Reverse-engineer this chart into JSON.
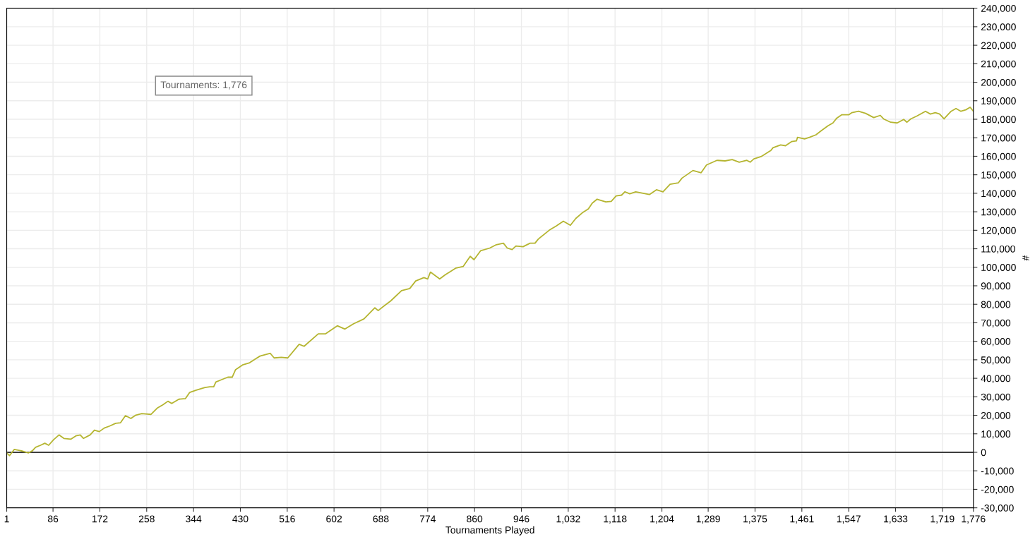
{
  "chart_data": {
    "type": "line",
    "xlabel": "Tournaments Played",
    "ylabel": "#",
    "annotations": [
      "Tournaments: 1,776"
    ],
    "xlim": [
      1,
      1776
    ],
    "ylim": [
      -30000,
      240000
    ],
    "xticks": [
      1,
      86,
      172,
      258,
      344,
      430,
      516,
      602,
      688,
      774,
      860,
      946,
      {
        "value": 1032,
        "label": "1,032"
      },
      {
        "value": 1118,
        "label": "1,118"
      },
      {
        "value": 1204,
        "label": "1,204"
      },
      {
        "value": 1289,
        "label": "1,289"
      },
      {
        "value": 1375,
        "label": "1,375"
      },
      {
        "value": 1461,
        "label": "1,461"
      },
      {
        "value": 1547,
        "label": "1,547"
      },
      {
        "value": 1633,
        "label": "1,633"
      },
      {
        "value": 1719,
        "label": "1,719"
      },
      {
        "value": 1776,
        "label": "1,776"
      }
    ],
    "yticks": [
      {
        "value": -30000,
        "label": "-30,000"
      },
      {
        "value": -20000,
        "label": "-20,000"
      },
      {
        "value": -10000,
        "label": "-10,000"
      },
      0,
      {
        "value": 10000,
        "label": "10,000"
      },
      {
        "value": 20000,
        "label": "20,000"
      },
      {
        "value": 30000,
        "label": "30,000"
      },
      {
        "value": 40000,
        "label": "40,000"
      },
      {
        "value": 50000,
        "label": "50,000"
      },
      {
        "value": 60000,
        "label": "60,000"
      },
      {
        "value": 70000,
        "label": "70,000"
      },
      {
        "value": 80000,
        "label": "80,000"
      },
      {
        "value": 90000,
        "label": "90,000"
      },
      {
        "value": 100000,
        "label": "100,000"
      },
      {
        "value": 110000,
        "label": "110,000"
      },
      {
        "value": 120000,
        "label": "120,000"
      },
      {
        "value": 130000,
        "label": "130,000"
      },
      {
        "value": 140000,
        "label": "140,000"
      },
      {
        "value": 150000,
        "label": "150,000"
      },
      {
        "value": 160000,
        "label": "160,000"
      },
      {
        "value": 170000,
        "label": "170,000"
      },
      {
        "value": 180000,
        "label": "180,000"
      },
      {
        "value": 190000,
        "label": "190,000"
      },
      {
        "value": 200000,
        "label": "200,000"
      },
      {
        "value": 210000,
        "label": "210,000"
      },
      {
        "value": 220000,
        "label": "220,000"
      },
      {
        "value": 230000,
        "label": "230,000"
      },
      {
        "value": 240000,
        "label": "240,000"
      }
    ],
    "grid": true,
    "marker": "none",
    "line_style": "solid",
    "ref_lines": [
      {
        "axis": "y",
        "value": 0,
        "color": "#000000"
      }
    ],
    "series": [
      {
        "color": "#b5b531",
        "x": [
          1,
          6,
          15,
          28,
          41,
          48,
          54,
          63,
          71,
          78,
          87,
          97,
          106,
          119,
          128,
          136,
          142,
          154,
          162,
          171,
          180,
          190,
          201,
          210,
          219,
          229,
          238,
          249,
          266,
          277,
          288,
          297,
          304,
          317,
          329,
          337,
          348,
          365,
          374,
          381,
          385,
          394,
          407,
          415,
          421,
          434,
          447,
          454,
          466,
          485,
          492,
          505,
          517,
          538,
          547,
          573,
          586,
          608,
          622,
          638,
          657,
          677,
          683,
          696,
          706,
          726,
          741,
          752,
          767,
          774,
          779,
          796,
          806,
          826,
          839,
          852,
          859,
          871,
          888,
          900,
          913,
          920,
          929,
          936,
          949,
          962,
          971,
          977,
          997,
          1010,
          1023,
          1036,
          1046,
          1059,
          1069,
          1076,
          1085,
          1101,
          1111,
          1120,
          1130,
          1136,
          1145,
          1156,
          1181,
          1194,
          1206,
          1219,
          1234,
          1241,
          1261,
          1276,
          1286,
          1305,
          1320,
          1333,
          1346,
          1360,
          1366,
          1373,
          1386,
          1404,
          1408,
          1422,
          1431,
          1442,
          1451,
          1453,
          1466,
          1475,
          1487,
          1497,
          1509,
          1518,
          1525,
          1534,
          1547,
          1553,
          1565,
          1578,
          1593,
          1605,
          1611,
          1624,
          1636,
          1648,
          1654,
          1661,
          1672,
          1688,
          1697,
          1706,
          1714,
          1722,
          1735,
          1744,
          1753,
          1762,
          1770,
          1776
        ],
        "values": [
          -300,
          -1800,
          1600,
          800,
          -300,
          800,
          2700,
          3800,
          4900,
          3800,
          6800,
          9400,
          7500,
          7100,
          8900,
          9400,
          7500,
          9400,
          12000,
          11200,
          13100,
          14200,
          15700,
          16000,
          19800,
          18300,
          20100,
          20900,
          20500,
          23800,
          25700,
          27600,
          26400,
          28700,
          29000,
          32400,
          33500,
          35000,
          35400,
          35400,
          38000,
          39100,
          40600,
          40600,
          44600,
          47200,
          48400,
          49800,
          52000,
          53500,
          51000,
          51300,
          51000,
          58400,
          57300,
          64000,
          64000,
          68400,
          66600,
          69500,
          72100,
          78100,
          76600,
          79600,
          81800,
          87400,
          88500,
          92600,
          94400,
          93700,
          97400,
          93700,
          95900,
          99600,
          100400,
          105900,
          104100,
          108900,
          110400,
          112200,
          113000,
          110400,
          109600,
          111500,
          111100,
          113000,
          113000,
          115200,
          120000,
          122300,
          124900,
          122700,
          126400,
          129700,
          131600,
          134600,
          136800,
          135300,
          135600,
          138600,
          139000,
          140800,
          139700,
          140800,
          139300,
          141900,
          140800,
          144900,
          145600,
          148200,
          152300,
          151100,
          155300,
          157800,
          157500,
          158200,
          156800,
          157800,
          156800,
          158600,
          159800,
          163100,
          164600,
          166100,
          165700,
          167900,
          168300,
          170200,
          169400,
          170200,
          171600,
          173900,
          176500,
          178000,
          180600,
          182400,
          182400,
          183600,
          184300,
          183200,
          180900,
          182100,
          180200,
          178400,
          178000,
          179900,
          178400,
          180200,
          181700,
          184300,
          182800,
          183600,
          182800,
          180200,
          184300,
          185800,
          184300,
          185100,
          186500,
          184300
        ]
      }
    ]
  }
}
